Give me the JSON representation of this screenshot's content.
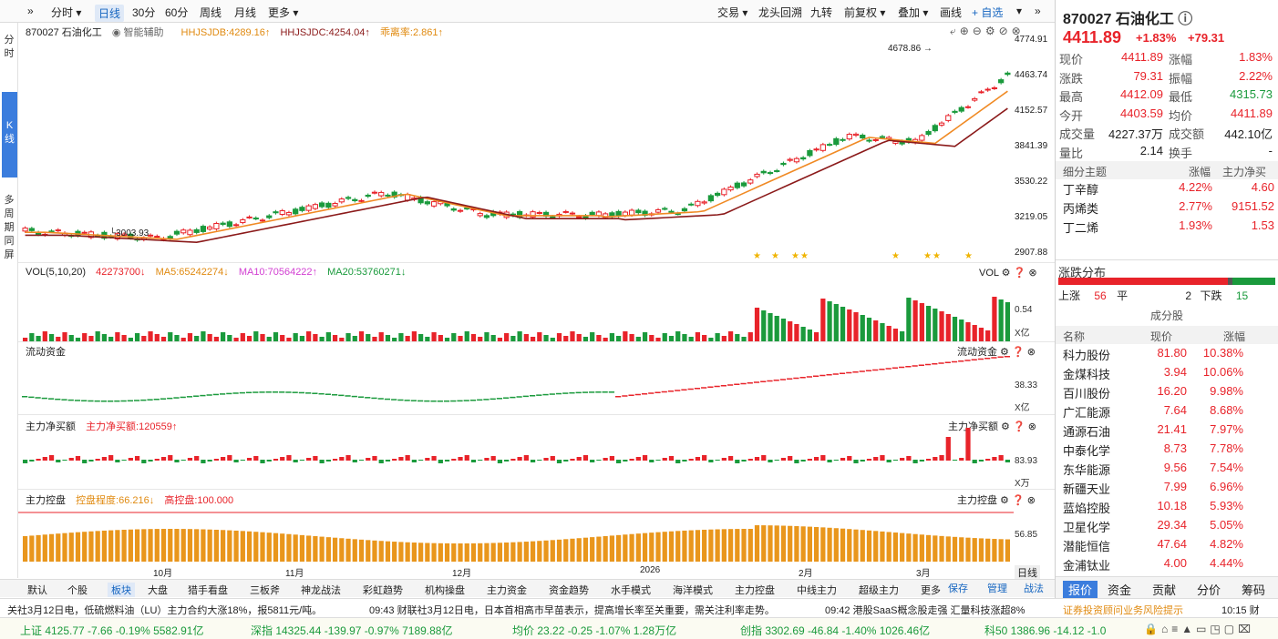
{
  "toolbar": {
    "collapse": "»",
    "fenshi": "分时",
    "rixian": "日线",
    "m30": "30分",
    "m60": "60分",
    "zhouxian": "周线",
    "yuexian": "月线",
    "more": "更多",
    "jiaoyi": "交易",
    "longtou": "龙头回溯",
    "jiuzhuan": "九转",
    "fuquan": "前复权",
    "diejia": "叠加",
    "tuxian": "画线",
    "zixuan": "+ 自选",
    "expand": "»"
  },
  "rail": {
    "fenshi": "分时",
    "kxian": "K线",
    "multi": "多周期同屏"
  },
  "main": {
    "code_name": "870027 石油化工",
    "smart": "智能辅助",
    "hhjsjdb": "HHJSJDB:4289.16↑",
    "hhjsjdc": "HHJSJDC:4254.04↑",
    "deviation": "乖离率:2.861↑",
    "yaxis": [
      "4774.91",
      "4463.74",
      "4152.57",
      "3841.39",
      "3530.22",
      "3219.05",
      "2907.88"
    ],
    "high_label": "4678.86",
    "low_label": "3003.93"
  },
  "vol": {
    "title": "VOL(5,10,20)",
    "val": "42273700↓",
    "ma5": "MA5:65242274↓",
    "ma10": "MA10:70564222↑",
    "ma20": "MA20:53760271↓",
    "label": "VOL",
    "axis_val": "0.54",
    "unit": "X亿"
  },
  "flow": {
    "title": "流动资金",
    "label": "流动资金",
    "axis_val": "38.33",
    "unit": "X亿"
  },
  "netbuy": {
    "title": "主力净买额",
    "val": "主力净买额:120559↑",
    "label": "主力净买额",
    "axis_val": "83.93",
    "unit": "X万"
  },
  "control": {
    "title": "主力控盘",
    "val": "控盘程度:66.216↓",
    "high": "高控盘:100.000",
    "label": "主力控盘",
    "axis_val": "56.85"
  },
  "xaxis": [
    "10月",
    "11月",
    "12月",
    "2026",
    "2月",
    "3月"
  ],
  "bottom_tabs": [
    "默认",
    "个股",
    "板块",
    "大盘",
    "猎手看盘",
    "三板斧",
    "神龙战法",
    "彩虹趋势",
    "机构操盘",
    "主力资金",
    "资金趋势",
    "水手模式",
    "海洋模式",
    "主力控盘",
    "中线主力",
    "超级主力",
    "更多"
  ],
  "period_label": "日线",
  "tool_tabs": {
    "save": "保存",
    "manage": "管理",
    "strategy": "战法"
  },
  "quote": {
    "code_name": "870027 石油化工",
    "price": "4411.89",
    "pct": "+1.83%",
    "chg": "+79.31",
    "rows": [
      [
        "现价",
        "4411.89",
        "涨幅",
        "1.83%"
      ],
      [
        "涨跌",
        "79.31",
        "振幅",
        "2.22%"
      ],
      [
        "最高",
        "4412.09",
        "最低",
        "4315.73"
      ],
      [
        "今开",
        "4403.59",
        "均价",
        "4411.89"
      ],
      [
        "成交量",
        "4227.37万",
        "成交额",
        "442.10亿"
      ],
      [
        "量比",
        "2.14",
        "换手",
        "-"
      ]
    ]
  },
  "themes": {
    "header": [
      "细分主题",
      "涨幅",
      "主力净买"
    ],
    "items": [
      [
        "丁辛醇",
        "4.22%",
        "4.60"
      ],
      [
        "丙烯类",
        "2.77%",
        "9151.52"
      ],
      [
        "丁二烯",
        "1.93%",
        "1.53"
      ]
    ]
  },
  "dist": {
    "title": "涨跌分布",
    "up_label": "上涨",
    "up": "56",
    "flat_label": "平",
    "flat": "2",
    "down_label": "下跌",
    "down": "15"
  },
  "components": {
    "title": "成分股",
    "header": [
      "名称",
      "现价",
      "涨幅"
    ],
    "items": [
      [
        "科力股份",
        "81.80",
        "10.38%"
      ],
      [
        "金煤科技",
        "3.94",
        "10.06%"
      ],
      [
        "百川股份",
        "16.20",
        "9.98%"
      ],
      [
        "广汇能源",
        "7.64",
        "8.68%"
      ],
      [
        "通源石油",
        "21.41",
        "7.97%"
      ],
      [
        "中泰化学",
        "8.73",
        "7.78%"
      ],
      [
        "东华能源",
        "9.56",
        "7.54%"
      ],
      [
        "新疆天业",
        "7.99",
        "6.96%"
      ],
      [
        "蓝焰控股",
        "10.18",
        "5.93%"
      ],
      [
        "卫星化学",
        "29.34",
        "5.05%"
      ],
      [
        "潜能恒信",
        "47.64",
        "4.82%"
      ],
      [
        "金浦钛业",
        "4.00",
        "4.44%"
      ]
    ]
  },
  "right_tabs": [
    "报价",
    "资金",
    "贡献",
    "分价",
    "筹码"
  ],
  "news": {
    "n1": "关社3月12日电，低硫燃料油（LU）主力合约大涨18%，报5811元/吨。",
    "n2": "09:43 财联社3月12日电，日本首相高市早苗表示，提高增长率至关重要，需关注利率走势。",
    "n3": "09:42 港股SaaS概念股走强 汇量科技涨超8%",
    "n4": "证券投资顾问业务风险提示",
    "time": "10:15 财"
  },
  "status": {
    "sh": "上证  4125.77  -7.66  -0.19%  5582.91亿",
    "sz": "深指 14325.44  -139.97  -0.97%  7189.88亿",
    "jj": "均价 23.22  -0.25  -1.07%  1.28万亿",
    "cy": "创指 3302.69  -46.84  -1.40%  1026.46亿",
    "kc": "科50 1386.96  -14.12  -1.0"
  }
}
